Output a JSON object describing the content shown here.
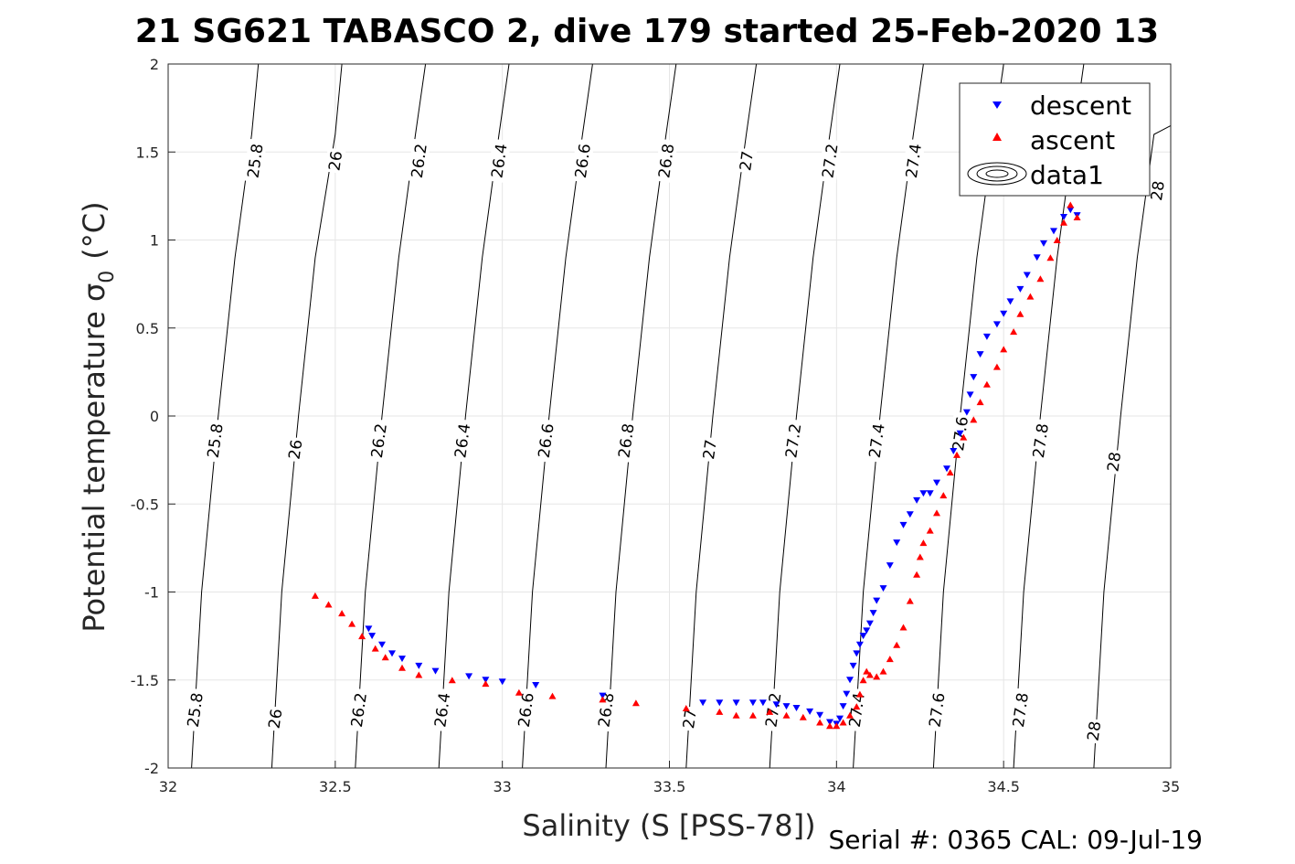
{
  "chart_data": {
    "type": "scatter",
    "title": "21 SG621 TABASCO 2, dive 179 started 25-Feb-2020 13",
    "xlabel": "Salinity (S [PSS-78])",
    "ylabel": "Potential temperature σ",
    "ylabel_sub": "0",
    "ylabel_unit": "(°C)",
    "xlim": [
      32,
      35
    ],
    "ylim": [
      -2,
      2
    ],
    "x_ticks": [
      32,
      32.5,
      33,
      33.5,
      34,
      34.5,
      35
    ],
    "x_tick_labels": [
      "32",
      "32.5",
      "33",
      "33.5",
      "34",
      "34.5",
      "35"
    ],
    "y_ticks": [
      2,
      1.5,
      1,
      0.5,
      0,
      -0.5,
      -1,
      -1.5,
      -2
    ],
    "y_tick_labels": [
      "2",
      "1.5",
      "1",
      "0.5",
      "0",
      "-0.5",
      "-1",
      "-1.5",
      "-2"
    ],
    "grid": true,
    "legend_position": "top-right",
    "legend": [
      {
        "name": "descent",
        "marker": "triangle-down",
        "color": "#0000ff"
      },
      {
        "name": "ascent",
        "marker": "triangle-up",
        "color": "#ff0000"
      },
      {
        "name": "data1",
        "marker": "contour",
        "color": "#000000"
      }
    ],
    "isopycnals": [
      {
        "sigma": "25.8",
        "points": [
          [
            32.07,
            -2.0
          ],
          [
            32.1,
            -1.0
          ],
          [
            32.15,
            0.0
          ],
          [
            32.2,
            0.9
          ],
          [
            32.25,
            1.6
          ],
          [
            32.27,
            2.0
          ]
        ]
      },
      {
        "sigma": "26",
        "points": [
          [
            32.31,
            -2.0
          ],
          [
            32.34,
            -1.0
          ],
          [
            32.39,
            0.0
          ],
          [
            32.44,
            0.9
          ],
          [
            32.5,
            1.6
          ],
          [
            32.52,
            2.0
          ]
        ]
      },
      {
        "sigma": "26.2",
        "points": [
          [
            32.56,
            -2.0
          ],
          [
            32.59,
            -1.0
          ],
          [
            32.64,
            0.0
          ],
          [
            32.69,
            0.9
          ],
          [
            32.74,
            1.6
          ],
          [
            32.77,
            2.0
          ]
        ]
      },
      {
        "sigma": "26.4",
        "points": [
          [
            32.81,
            -2.0
          ],
          [
            32.84,
            -1.0
          ],
          [
            32.89,
            0.0
          ],
          [
            32.94,
            0.9
          ],
          [
            32.99,
            1.6
          ],
          [
            33.02,
            2.0
          ]
        ]
      },
      {
        "sigma": "26.6",
        "points": [
          [
            33.06,
            -2.0
          ],
          [
            33.09,
            -1.0
          ],
          [
            33.14,
            0.0
          ],
          [
            33.19,
            0.9
          ],
          [
            33.24,
            1.6
          ],
          [
            33.27,
            2.0
          ]
        ]
      },
      {
        "sigma": "26.8",
        "points": [
          [
            33.31,
            -2.0
          ],
          [
            33.34,
            -1.0
          ],
          [
            33.39,
            0.0
          ],
          [
            33.44,
            0.9
          ],
          [
            33.49,
            1.6
          ],
          [
            33.52,
            2.0
          ]
        ]
      },
      {
        "sigma": "27",
        "points": [
          [
            33.55,
            -2.0
          ],
          [
            33.58,
            -1.0
          ],
          [
            33.63,
            0.0
          ],
          [
            33.68,
            0.9
          ],
          [
            33.73,
            1.6
          ],
          [
            33.76,
            2.0
          ]
        ]
      },
      {
        "sigma": "27.2",
        "points": [
          [
            33.8,
            -2.0
          ],
          [
            33.83,
            -1.0
          ],
          [
            33.88,
            0.0
          ],
          [
            33.93,
            0.9
          ],
          [
            33.98,
            1.6
          ],
          [
            34.01,
            2.0
          ]
        ]
      },
      {
        "sigma": "27.4",
        "points": [
          [
            34.05,
            -2.0
          ],
          [
            34.08,
            -1.0
          ],
          [
            34.13,
            0.0
          ],
          [
            34.18,
            0.9
          ],
          [
            34.23,
            1.6
          ],
          [
            34.26,
            2.0
          ]
        ]
      },
      {
        "sigma": "27.6",
        "points": [
          [
            34.29,
            -2.0
          ],
          [
            34.32,
            -1.0
          ],
          [
            34.37,
            0.0
          ],
          [
            34.42,
            0.9
          ],
          [
            34.47,
            1.6
          ],
          [
            34.5,
            2.0
          ]
        ]
      },
      {
        "sigma": "27.8",
        "points": [
          [
            34.53,
            -2.0
          ],
          [
            34.56,
            -1.0
          ],
          [
            34.61,
            0.0
          ],
          [
            34.66,
            0.9
          ],
          [
            34.71,
            1.6
          ],
          [
            34.74,
            2.0
          ]
        ]
      },
      {
        "sigma": "28",
        "points": [
          [
            34.77,
            -2.0
          ],
          [
            34.8,
            -1.0
          ],
          [
            34.85,
            0.0
          ],
          [
            34.9,
            0.9
          ],
          [
            34.95,
            1.6
          ],
          [
            35.0,
            1.65
          ]
        ]
      }
    ],
    "isopycnal_labels": [
      {
        "text": "25.8",
        "x": 32.26,
        "y": 1.45
      },
      {
        "text": "26",
        "x": 32.5,
        "y": 1.45
      },
      {
        "text": "26.2",
        "x": 32.75,
        "y": 1.45
      },
      {
        "text": "26.4",
        "x": 32.99,
        "y": 1.45
      },
      {
        "text": "26.6",
        "x": 33.24,
        "y": 1.45
      },
      {
        "text": "26.8",
        "x": 33.49,
        "y": 1.45
      },
      {
        "text": "27",
        "x": 33.73,
        "y": 1.45
      },
      {
        "text": "27.2",
        "x": 33.98,
        "y": 1.45
      },
      {
        "text": "27.4",
        "x": 34.23,
        "y": 1.45
      },
      {
        "text": "28",
        "x": 34.96,
        "y": 1.28
      },
      {
        "text": "25.8",
        "x": 32.14,
        "y": -0.14
      },
      {
        "text": "26",
        "x": 32.38,
        "y": -0.19
      },
      {
        "text": "26.2",
        "x": 32.63,
        "y": -0.14
      },
      {
        "text": "26.4",
        "x": 32.88,
        "y": -0.14
      },
      {
        "text": "26.6",
        "x": 33.13,
        "y": -0.14
      },
      {
        "text": "26.8",
        "x": 33.37,
        "y": -0.14
      },
      {
        "text": "27",
        "x": 33.62,
        "y": -0.19
      },
      {
        "text": "27.2",
        "x": 33.87,
        "y": -0.14
      },
      {
        "text": "27.4",
        "x": 34.12,
        "y": -0.14
      },
      {
        "text": "27.6",
        "x": 34.37,
        "y": -0.1
      },
      {
        "text": "27.8",
        "x": 34.61,
        "y": -0.14
      },
      {
        "text": "28",
        "x": 34.83,
        "y": -0.26
      },
      {
        "text": "25.8",
        "x": 32.08,
        "y": -1.67
      },
      {
        "text": "26",
        "x": 32.32,
        "y": -1.72
      },
      {
        "text": "26.2",
        "x": 32.57,
        "y": -1.67
      },
      {
        "text": "26.4",
        "x": 32.82,
        "y": -1.67
      },
      {
        "text": "26.6",
        "x": 33.07,
        "y": -1.67
      },
      {
        "text": "26.8",
        "x": 33.31,
        "y": -1.67
      },
      {
        "text": "27",
        "x": 33.56,
        "y": -1.72
      },
      {
        "text": "27.2",
        "x": 33.81,
        "y": -1.67
      },
      {
        "text": "27.4",
        "x": 34.06,
        "y": -1.67
      },
      {
        "text": "27.6",
        "x": 34.3,
        "y": -1.67
      },
      {
        "text": "27.8",
        "x": 34.55,
        "y": -1.67
      },
      {
        "text": "28",
        "x": 34.77,
        "y": -1.79
      }
    ],
    "series": [
      {
        "name": "descent",
        "marker": "triangle-down",
        "color": "#0000ff",
        "x": [
          34.72,
          34.7,
          34.68,
          34.65,
          34.62,
          34.6,
          34.57,
          34.55,
          34.52,
          34.5,
          34.48,
          34.45,
          34.43,
          34.41,
          34.4,
          34.39,
          34.37,
          34.35,
          34.33,
          34.3,
          34.28,
          34.26,
          34.24,
          34.22,
          34.2,
          34.18,
          34.16,
          34.14,
          34.12,
          34.11,
          34.1,
          34.09,
          34.08,
          34.07,
          34.06,
          34.05,
          34.04,
          34.03,
          34.02,
          34.01,
          34.0,
          33.98,
          33.95,
          33.92,
          33.88,
          33.85,
          33.82,
          33.78,
          33.75,
          33.7,
          33.65,
          33.6,
          33.3,
          33.1,
          33.0,
          32.95,
          32.9,
          32.8,
          32.75,
          32.7,
          32.67,
          32.64,
          32.61,
          32.6
        ],
        "y": [
          1.14,
          1.17,
          1.13,
          1.05,
          0.98,
          0.9,
          0.8,
          0.72,
          0.65,
          0.58,
          0.52,
          0.45,
          0.35,
          0.22,
          0.12,
          0.02,
          -0.1,
          -0.2,
          -0.3,
          -0.38,
          -0.44,
          -0.44,
          -0.48,
          -0.56,
          -0.62,
          -0.72,
          -0.85,
          -0.98,
          -1.05,
          -1.12,
          -1.18,
          -1.22,
          -1.25,
          -1.3,
          -1.35,
          -1.42,
          -1.5,
          -1.58,
          -1.65,
          -1.72,
          -1.75,
          -1.74,
          -1.7,
          -1.68,
          -1.66,
          -1.65,
          -1.64,
          -1.63,
          -1.63,
          -1.63,
          -1.63,
          -1.63,
          -1.59,
          -1.53,
          -1.51,
          -1.5,
          -1.48,
          -1.45,
          -1.42,
          -1.38,
          -1.35,
          -1.3,
          -1.25,
          -1.21
        ]
      },
      {
        "name": "ascent",
        "marker": "triangle-up",
        "color": "#ff0000",
        "x": [
          34.72,
          34.7,
          34.68,
          34.66,
          34.64,
          34.61,
          34.58,
          34.55,
          34.53,
          34.5,
          34.48,
          34.45,
          34.43,
          34.41,
          34.38,
          34.36,
          34.34,
          34.32,
          34.3,
          34.28,
          34.26,
          34.25,
          34.24,
          34.22,
          34.2,
          34.18,
          34.16,
          34.14,
          34.12,
          34.1,
          34.09,
          34.08,
          34.07,
          34.06,
          34.04,
          34.02,
          34.0,
          33.98,
          33.95,
          33.9,
          33.85,
          33.8,
          33.75,
          33.7,
          33.65,
          33.55,
          33.4,
          33.3,
          33.15,
          33.05,
          32.95,
          32.85,
          32.75,
          32.7,
          32.65,
          32.62,
          32.58,
          32.55,
          32.52,
          32.48,
          32.44
        ],
        "y": [
          1.13,
          1.2,
          1.1,
          1.0,
          0.9,
          0.78,
          0.68,
          0.58,
          0.48,
          0.38,
          0.28,
          0.18,
          0.08,
          -0.02,
          -0.12,
          -0.22,
          -0.32,
          -0.45,
          -0.55,
          -0.65,
          -0.72,
          -0.8,
          -0.9,
          -1.05,
          -1.2,
          -1.3,
          -1.38,
          -1.45,
          -1.48,
          -1.47,
          -1.45,
          -1.5,
          -1.58,
          -1.65,
          -1.7,
          -1.74,
          -1.76,
          -1.76,
          -1.74,
          -1.71,
          -1.7,
          -1.68,
          -1.7,
          -1.7,
          -1.68,
          -1.66,
          -1.63,
          -1.61,
          -1.59,
          -1.57,
          -1.52,
          -1.5,
          -1.47,
          -1.43,
          -1.37,
          -1.32,
          -1.25,
          -1.18,
          -1.12,
          -1.07,
          -1.02
        ]
      }
    ],
    "footer": "Serial #: 0365  CAL: 09-Jul-19"
  }
}
